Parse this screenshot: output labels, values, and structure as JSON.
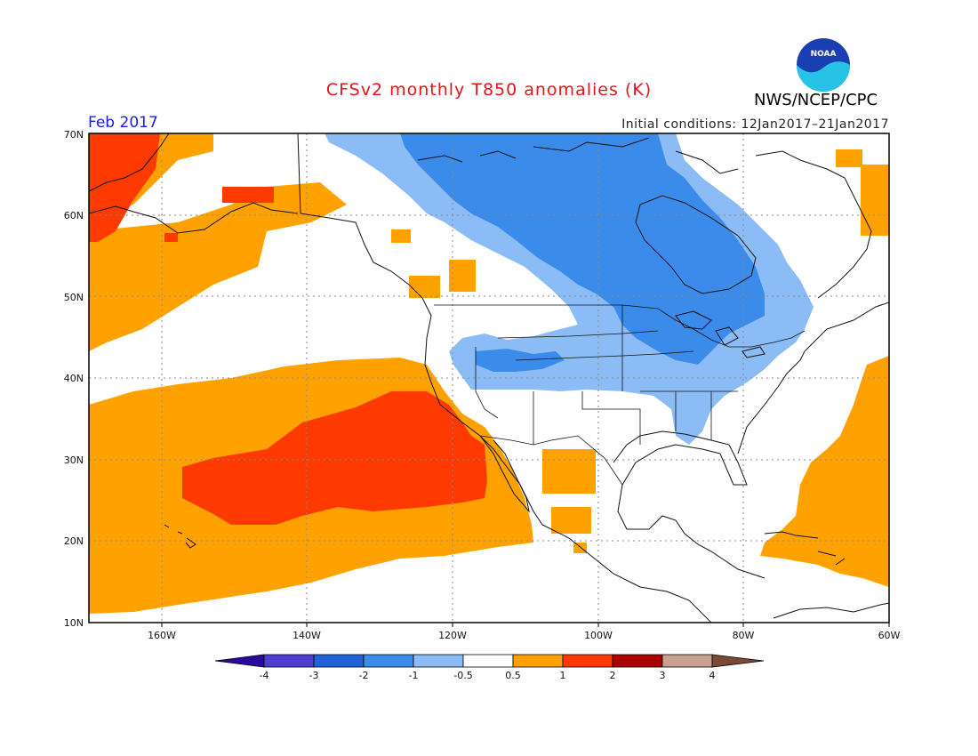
{
  "header": {
    "title": "CFSv2 monthly T850 anomalies (K)",
    "agency": "NWS/NCEP/CPC",
    "month": "Feb 2017",
    "initial_conditions": "Initial conditions: 12Jan2017–21Jan2017",
    "logo_text": "NOAA"
  },
  "map": {
    "lat_labels": [
      "70N",
      "60N",
      "50N",
      "40N",
      "30N",
      "20N",
      "10N"
    ],
    "lon_labels": [
      "160W",
      "140W",
      "120W",
      "100W",
      "80W",
      "60W"
    ],
    "lat_range": [
      10,
      70
    ],
    "lon_range": [
      -170,
      -60
    ],
    "grid": true
  },
  "colorbar": {
    "levels": [
      "-4",
      "-3",
      "-2",
      "-1",
      "-0.5",
      "0.5",
      "1",
      "2",
      "3",
      "4"
    ],
    "colors": [
      "#2a0a9e",
      "#4e3fd0",
      "#1f63d6",
      "#3b8cea",
      "#8cbcf5",
      "#ffffff",
      "#ffa200",
      "#ff3a00",
      "#aa0000",
      "#c8a193",
      "#7a4a36"
    ]
  },
  "colors": {
    "title": "#e8141b",
    "month": "#1a1aff",
    "orange": "#ffa200",
    "red": "#ff3a00",
    "light_blue": "#8cbcf5",
    "mid_blue": "#3b8cea"
  }
}
